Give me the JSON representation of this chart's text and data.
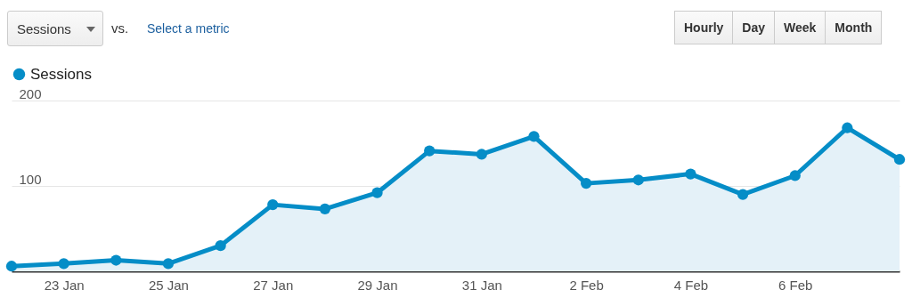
{
  "chart_data": {
    "type": "area",
    "x": [
      "--01-22",
      "--01-23",
      "--01-24",
      "--01-25",
      "--01-26",
      "--01-27",
      "--01-28",
      "--01-29",
      "--01-30",
      "--01-31",
      "--02-01",
      "--02-02",
      "--02-03",
      "--02-04",
      "--02-05",
      "--02-06",
      "--02-07",
      "--02-08"
    ],
    "series": [
      {
        "name": "Sessions",
        "color": "#058dc7",
        "values": [
          6,
          9,
          13,
          9,
          30,
          78,
          73,
          92,
          141,
          137,
          158,
          103,
          107,
          114,
          90,
          112,
          168,
          131
        ]
      }
    ],
    "xlim": [
      "--01-22",
      "--02-08"
    ],
    "xticks": [
      {
        "value": "--01-23",
        "label": "23 Jan"
      },
      {
        "value": "--01-25",
        "label": "25 Jan"
      },
      {
        "value": "--01-27",
        "label": "27 Jan"
      },
      {
        "value": "--01-29",
        "label": "29 Jan"
      },
      {
        "value": "--01-31",
        "label": "31 Jan"
      },
      {
        "value": "--02-02",
        "label": "2 Feb"
      },
      {
        "value": "--02-04",
        "label": "4 Feb"
      },
      {
        "value": "--02-06",
        "label": "6 Feb"
      }
    ],
    "ylim": [
      0,
      200
    ],
    "yticks": [
      100,
      200
    ],
    "grid": "y",
    "legend": "top left",
    "marker": "circle",
    "annotations": [
      "Sessions",
      "vs.",
      "Select a metric",
      "Hourly",
      "Day",
      "Week",
      "Month"
    ]
  }
}
